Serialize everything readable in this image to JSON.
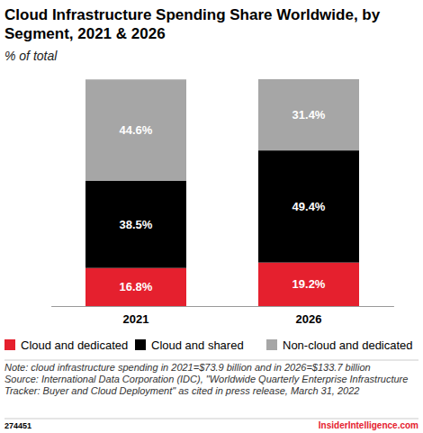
{
  "chart_data": {
    "type": "bar",
    "stacked": true,
    "data_labels": true,
    "tick_labels": "x",
    "title": "Cloud Infrastructure Spending Share Worldwide, by Segment, 2021 & 2026",
    "subtitle": "% of total",
    "categories": [
      "2021",
      "2026"
    ],
    "series": [
      {
        "name": "Cloud and dedicated",
        "color": "#e5202e",
        "values": [
          16.8,
          19.2
        ],
        "value_labels": [
          "16.8%",
          "19.2%"
        ]
      },
      {
        "name": "Cloud and shared",
        "color": "#000000",
        "values": [
          38.5,
          49.4
        ],
        "value_labels": [
          "38.5%",
          "49.4%"
        ]
      },
      {
        "name": "Non-cloud and dedicated",
        "color": "#a6a6a6",
        "values": [
          44.6,
          31.4
        ],
        "value_labels": [
          "44.6%",
          "31.4%"
        ]
      }
    ],
    "legend": "bottom",
    "note": "Note: cloud infrastructure spending in 2021=$73.9 billion and in 2026=$133.7 billion",
    "source": "Source: International Data Corporation (IDC), \"Worldwide Quarterly Enterprise Infrastructure Tracker: Buyer and Cloud Deployment\" as cited in press release, March 31, 2022",
    "chart_id": "274451",
    "brand": "InsiderIntelligence.com"
  }
}
